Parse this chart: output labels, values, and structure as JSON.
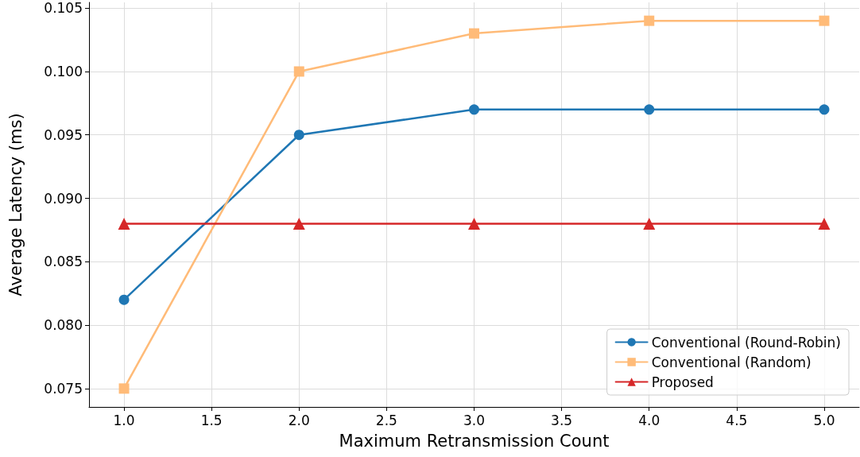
{
  "chart_data": {
    "type": "line",
    "xlabel": "Maximum Retransmission Count",
    "ylabel": "Average Latency (ms)",
    "x": [
      1,
      2,
      3,
      4,
      5
    ],
    "series": [
      {
        "name": "Conventional (Round-Robin)",
        "color": "#1f77b4",
        "marker": "circle",
        "values": [
          0.082,
          0.095,
          0.097,
          0.097,
          0.097
        ]
      },
      {
        "name": "Conventional (Random)",
        "color": "#ffbb78",
        "marker": "square",
        "values": [
          0.075,
          0.1,
          0.103,
          0.104,
          0.104
        ]
      },
      {
        "name": "Proposed",
        "color": "#d62728",
        "marker": "triangle",
        "values": [
          0.088,
          0.088,
          0.088,
          0.088,
          0.088
        ]
      }
    ],
    "xlim": [
      0.8,
      5.2
    ],
    "xticks": [
      {
        "value": 1,
        "label": "1.0"
      },
      {
        "value": 1.5,
        "label": "1.5"
      },
      {
        "value": 2,
        "label": "2.0"
      },
      {
        "value": 2.5,
        "label": "2.5"
      },
      {
        "value": 3,
        "label": "3.0"
      },
      {
        "value": 3.5,
        "label": "3.5"
      },
      {
        "value": 4,
        "label": "4.0"
      },
      {
        "value": 4.5,
        "label": "4.5"
      },
      {
        "value": 5,
        "label": "5.0"
      }
    ],
    "ylim": [
      0.07355,
      0.10545
    ],
    "yticks": [
      0.075,
      {
        "value": 0.08,
        "label": "0.080"
      },
      0.085,
      {
        "value": 0.09,
        "label": "0.090"
      },
      0.095,
      {
        "value": 0.1,
        "label": "0.100"
      },
      0.105
    ],
    "grid": true,
    "legend": "bottom right",
    "line_style": "solid"
  }
}
